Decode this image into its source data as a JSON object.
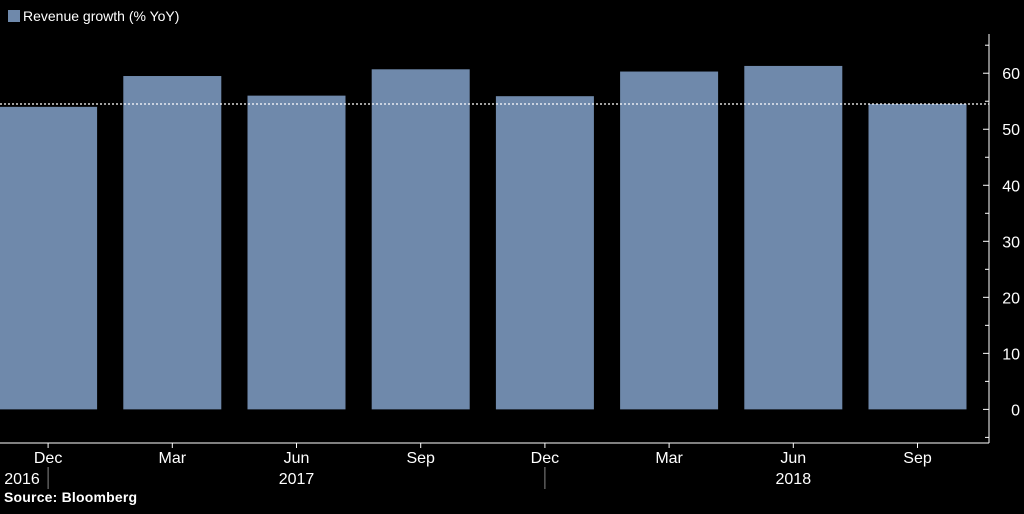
{
  "source_label": "Source: Bloomberg",
  "colors": {
    "background": "#000000",
    "bar": "#6f89ab",
    "axis": "#ffffff",
    "mean_line": "#ffffff",
    "text": "#ffffff"
  },
  "chart_data": {
    "type": "bar",
    "categories": [
      "Dec",
      "Mar",
      "Jun",
      "Sep",
      "Dec",
      "Mar",
      "Jun",
      "Sep"
    ],
    "year_labels": [
      {
        "label": "2016",
        "category_index": 0
      },
      {
        "label": "2017",
        "category_index": 2
      },
      {
        "label": "2018",
        "category_index": 6
      }
    ],
    "series": [
      {
        "name": "Revenue growth (% YoY)",
        "values": [
          54,
          59.5,
          56,
          60.7,
          55.9,
          60.3,
          61.3,
          54.5
        ]
      }
    ],
    "mean_line": 54.5,
    "ylim": [
      -6,
      67
    ],
    "y_ticks": [
      0,
      10,
      20,
      30,
      40,
      50,
      60
    ],
    "y_axis_position": "right",
    "grid": false,
    "legend_position": "top-left",
    "title": "",
    "xlabel": "",
    "ylabel": ""
  }
}
